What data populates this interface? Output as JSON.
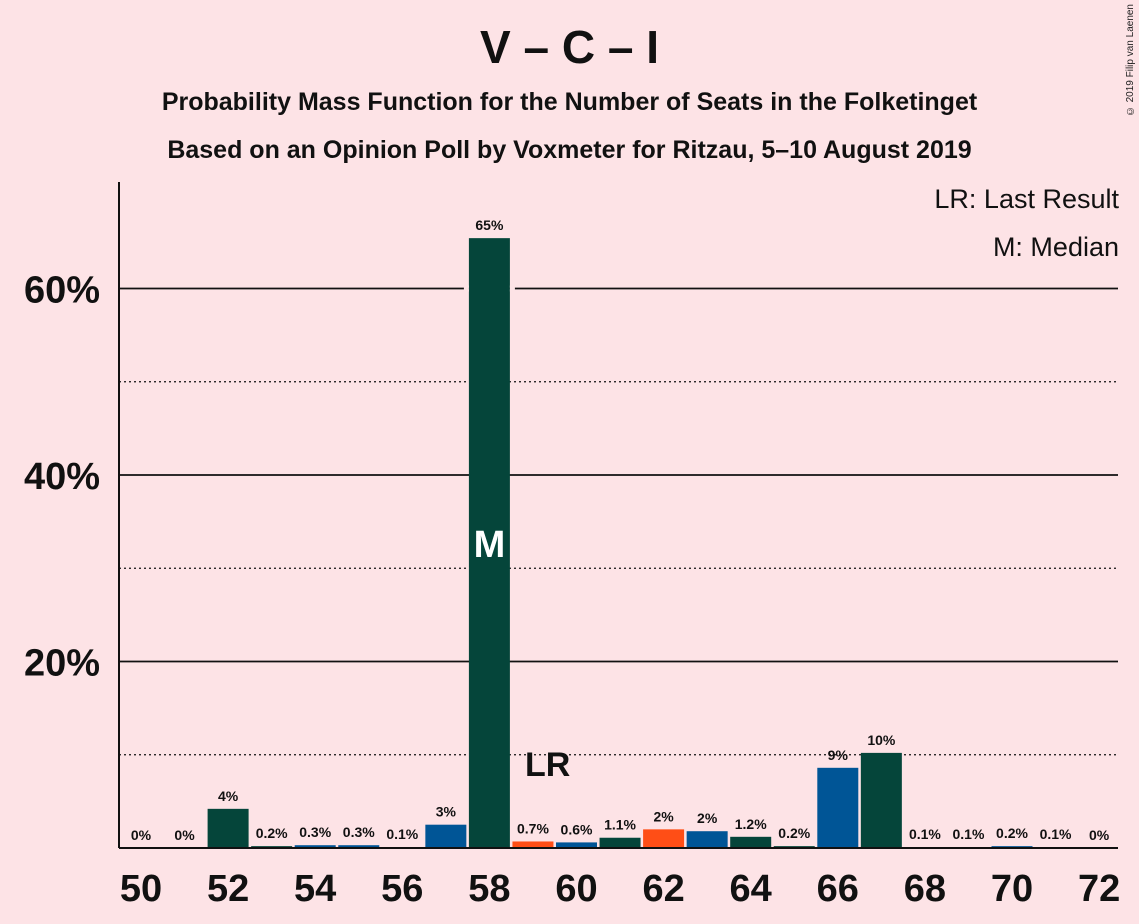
{
  "header": {
    "title": "V – C – I",
    "subtitle1": "Probability Mass Function for the Number of Seats in the Folketinget",
    "subtitle2": "Based on an Opinion Poll by Voxmeter for Ritzau, 5–10 August 2019",
    "copyright": "© 2019 Filip van Laenen"
  },
  "legend": {
    "last_result": "LR: Last Result",
    "median": "M: Median"
  },
  "markers": {
    "median_label": "M",
    "last_result_label": "LR"
  },
  "colors": {
    "background": "#fde3e6",
    "dark_green": "#05453a",
    "blue": "#005596",
    "orange": "#ff4e16",
    "axis": "#111111"
  },
  "chart_data": {
    "type": "bar",
    "x": [
      50,
      51,
      52,
      53,
      54,
      55,
      56,
      57,
      58,
      59,
      60,
      61,
      62,
      63,
      64,
      65,
      66,
      67,
      68,
      69,
      70,
      71,
      72
    ],
    "values": [
      0,
      0,
      4.2,
      0.2,
      0.3,
      0.3,
      0.1,
      2.5,
      65.4,
      0.7,
      0.6,
      1.1,
      2.0,
      1.8,
      1.2,
      0.2,
      8.6,
      10.2,
      0.1,
      0.1,
      0.2,
      0.1,
      0
    ],
    "data_labels": [
      "0%",
      "0%",
      "4%",
      "0.2%",
      "0.3%",
      "0.3%",
      "0.1%",
      "3%",
      "65%",
      "0.7%",
      "0.6%",
      "1.1%",
      "2%",
      "2%",
      "1.2%",
      "0.2%",
      "9%",
      "10%",
      "0.1%",
      "0.1%",
      "0.2%",
      "0.1%",
      "0%"
    ],
    "bar_colors": [
      "dark_green",
      "dark_green",
      "dark_green",
      "dark_green",
      "blue",
      "blue",
      "blue",
      "blue",
      "dark_green",
      "orange",
      "blue",
      "dark_green",
      "orange",
      "blue",
      "dark_green",
      "dark_green",
      "blue",
      "dark_green",
      "dark_green",
      "dark_green",
      "blue",
      "dark_green",
      "dark_green"
    ],
    "x_tick_labels": [
      "50",
      "52",
      "54",
      "56",
      "58",
      "60",
      "62",
      "64",
      "66",
      "68",
      "70",
      "72"
    ],
    "y_tick_labels": [
      "20%",
      "40%",
      "60%"
    ],
    "y_major_ticks": [
      20,
      40,
      60
    ],
    "y_minor_ticks": [
      10,
      30,
      50
    ],
    "ylim": [
      0,
      71
    ],
    "median_seat": 58,
    "last_result_seat": 59
  }
}
